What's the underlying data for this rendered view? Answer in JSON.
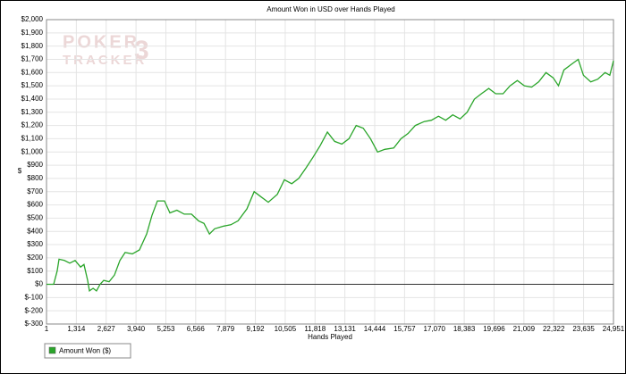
{
  "chart_data": {
    "type": "line",
    "title": "Amount Won in USD over Hands Played",
    "xlabel": "Hands Played",
    "ylabel": "$",
    "watermark": [
      "POKER",
      "TRACKER",
      "3"
    ],
    "grid": true,
    "legend": "bottom-left",
    "xlim": [
      1,
      24951
    ],
    "xticks": [
      1,
      {
        "value": 1314,
        "label": "1,314"
      },
      {
        "value": 2627,
        "label": "2,627"
      },
      {
        "value": 3940,
        "label": "3,940"
      },
      {
        "value": 5253,
        "label": "5,253"
      },
      {
        "value": 6566,
        "label": "6,566"
      },
      {
        "value": 7879,
        "label": "7,879"
      },
      {
        "value": 9192,
        "label": "9,192"
      },
      {
        "value": 10505,
        "label": "10,505"
      },
      {
        "value": 11818,
        "label": "11,818"
      },
      {
        "value": 13131,
        "label": "13,131"
      },
      {
        "value": 14444,
        "label": "14,444"
      },
      {
        "value": 15757,
        "label": "15,757"
      },
      {
        "value": 17070,
        "label": "17,070"
      },
      {
        "value": 18383,
        "label": "18,383"
      },
      {
        "value": 19696,
        "label": "19,696"
      },
      {
        "value": 21009,
        "label": "21,009"
      },
      {
        "value": 22322,
        "label": "22,322"
      },
      {
        "value": 23635,
        "label": "23,635"
      },
      {
        "value": 24951,
        "label": "24,951"
      }
    ],
    "ylim": [
      -300,
      2000
    ],
    "yticks": [
      {
        "value": -300,
        "label": "$-300"
      },
      {
        "value": -200,
        "label": "$-200"
      },
      {
        "value": -100,
        "label": "$-100"
      },
      {
        "value": 0,
        "label": "$0"
      },
      {
        "value": 100,
        "label": "$100"
      },
      {
        "value": 200,
        "label": "$200"
      },
      {
        "value": 300,
        "label": "$300"
      },
      {
        "value": 400,
        "label": "$400"
      },
      {
        "value": 500,
        "label": "$500"
      },
      {
        "value": 600,
        "label": "$600"
      },
      {
        "value": 700,
        "label": "$700"
      },
      {
        "value": 800,
        "label": "$800"
      },
      {
        "value": 900,
        "label": "$900"
      },
      {
        "value": 1000,
        "label": "$1,000"
      },
      {
        "value": 1100,
        "label": "$1,100"
      },
      {
        "value": 1200,
        "label": "$1,200"
      },
      {
        "value": 1300,
        "label": "$1,300"
      },
      {
        "value": 1400,
        "label": "$1,400"
      },
      {
        "value": 1500,
        "label": "$1,500"
      },
      {
        "value": 1600,
        "label": "$1,600"
      },
      {
        "value": 1700,
        "label": "$1,700"
      },
      {
        "value": 1800,
        "label": "$1,800"
      },
      {
        "value": 1900,
        "label": "$1,900"
      },
      {
        "value": 2000,
        "label": "$2,000"
      }
    ],
    "x": [
      1,
      315,
      470,
      550,
      790,
      1025,
      1260,
      1500,
      1650,
      1810,
      1890,
      2050,
      2200,
      2360,
      2520,
      2755,
      2990,
      3230,
      3460,
      3780,
      4090,
      4410,
      4640,
      4880,
      5190,
      5430,
      5740,
      6060,
      6380,
      6690,
      6930,
      7170,
      7400,
      7800,
      8110,
      8430,
      8820,
      9140,
      9450,
      9760,
      10160,
      10470,
      10790,
      11100,
      11420,
      11730,
      12050,
      12360,
      12680,
      13000,
      13310,
      13630,
      13940,
      14260,
      14570,
      14890,
      15280,
      15600,
      15910,
      16230,
      16620,
      16940,
      17250,
      17570,
      17880,
      18200,
      18510,
      18830,
      19140,
      19460,
      19770,
      20090,
      20400,
      20720,
      21030,
      21350,
      21660,
      21980,
      22300,
      22530,
      22770,
      23080,
      23400,
      23630,
      23950,
      24260,
      24580,
      24790,
      24951
    ],
    "series": [
      {
        "name": "Amount Won ($)",
        "color": "#2aa52a",
        "values": [
          0,
          0,
          100,
          190,
          180,
          160,
          180,
          130,
          150,
          30,
          -50,
          -30,
          -50,
          0,
          30,
          20,
          70,
          180,
          240,
          230,
          260,
          380,
          520,
          630,
          630,
          540,
          560,
          530,
          530,
          480,
          460,
          380,
          420,
          440,
          450,
          480,
          570,
          700,
          660,
          620,
          680,
          790,
          760,
          800,
          880,
          960,
          1050,
          1150,
          1080,
          1060,
          1100,
          1200,
          1180,
          1100,
          1000,
          1020,
          1030,
          1100,
          1140,
          1200,
          1230,
          1240,
          1270,
          1240,
          1280,
          1250,
          1300,
          1400,
          1440,
          1480,
          1440,
          1440,
          1500,
          1540,
          1500,
          1490,
          1530,
          1600,
          1560,
          1500,
          1620,
          1660,
          1700,
          1580,
          1530,
          1550,
          1600,
          1580,
          1690
        ]
      }
    ]
  }
}
